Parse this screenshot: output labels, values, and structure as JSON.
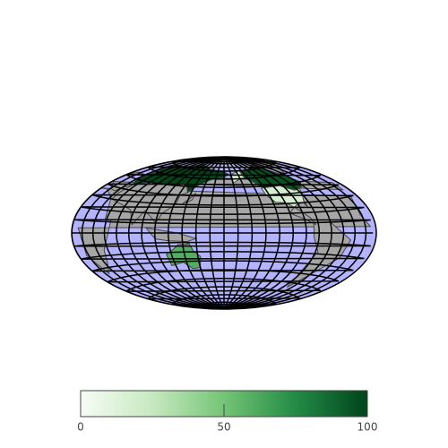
{
  "chart_data": {
    "type": "choropleth",
    "values": [
      100,
      95,
      18,
      18,
      60
    ],
    "colorscale": [
      "#f7fcf5",
      "#c7e9c0",
      "#74c476",
      "#238b45",
      "#00441b"
    ],
    "clim": [
      0,
      100
    ],
    "cticks": [
      0,
      50,
      100
    ],
    "land_color": "#a6a6a6",
    "ocean_color": "#b3b3ff",
    "grid": true
  }
}
